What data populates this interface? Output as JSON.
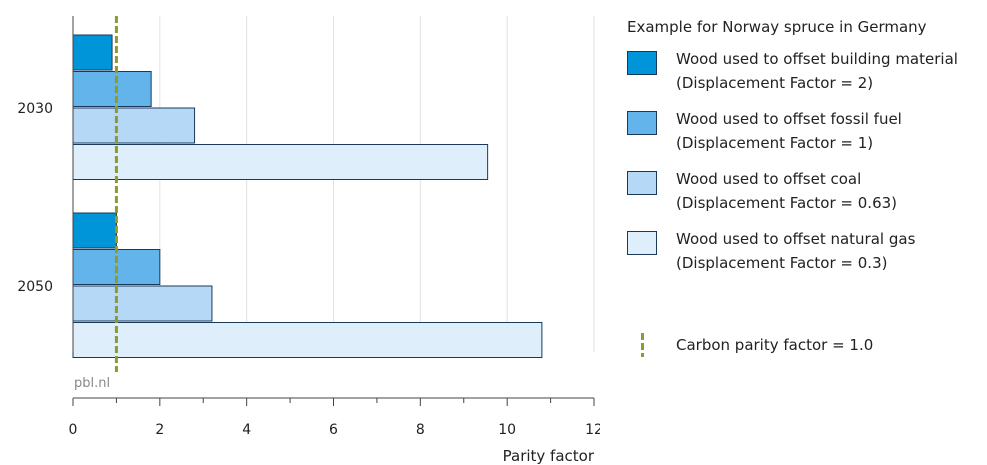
{
  "chart_data": {
    "type": "bar",
    "orientation": "horizontal",
    "title": "Example for Norway spruce in Germany",
    "xlabel": "Parity factor",
    "ylabel": "",
    "xlim": [
      0,
      12
    ],
    "xticks": [
      "0",
      "2",
      "4",
      "6",
      "8",
      "10",
      "12"
    ],
    "categories": [
      "2030",
      "2050"
    ],
    "series": [
      {
        "name": "Wood used to offset building material",
        "sub": "(Displacement Factor = 2)",
        "color": "#0094d8",
        "values": [
          0.9,
          1.0
        ]
      },
      {
        "name": "Wood used to offset fossil fuel",
        "sub": "(Displacement Factor = 1)",
        "color": "#63b4ea",
        "values": [
          1.8,
          2.0
        ]
      },
      {
        "name": "Wood used to offset coal",
        "sub": "(Displacement Factor = 0.63)",
        "color": "#b4d8f5",
        "values": [
          2.8,
          3.2
        ]
      },
      {
        "name": "Wood used to offset natural gas",
        "sub": "(Displacement Factor = 0.3)",
        "color": "#deeefb",
        "values": [
          9.55,
          10.8
        ]
      }
    ],
    "reference_line": {
      "label": "Carbon parity factor = 1.0",
      "value": 1.0,
      "color": "#8e9a2b"
    },
    "source": "pbl.nl",
    "grid": true,
    "legend_position": "right"
  }
}
